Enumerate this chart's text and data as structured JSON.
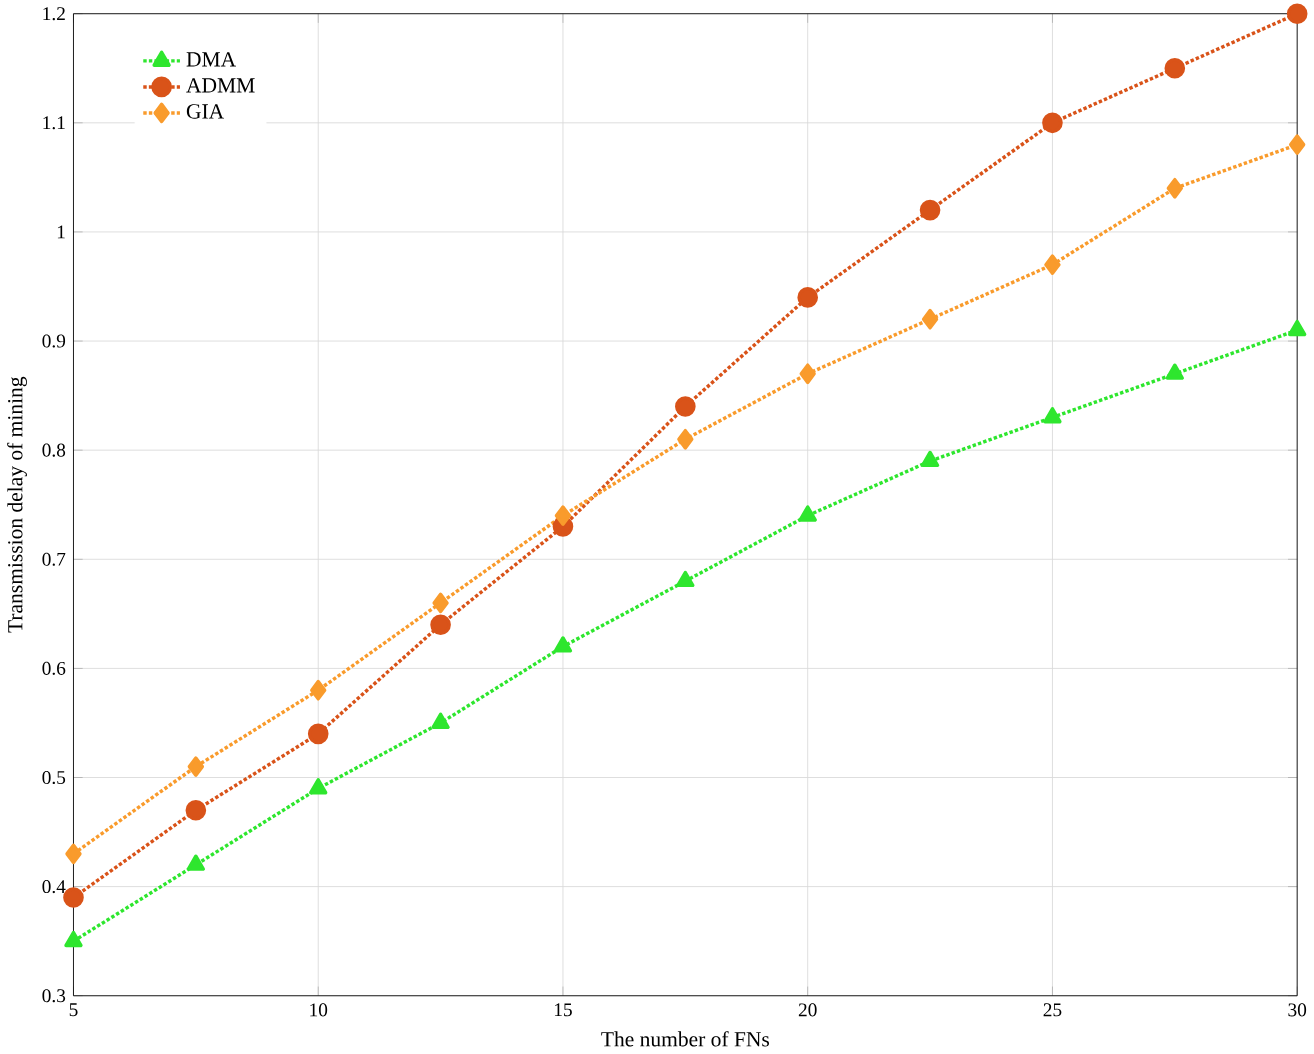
{
  "chart_data": {
    "type": "line",
    "xlabel": "The number of FNs",
    "ylabel": "Transmission delay of mining",
    "x": [
      5,
      7.5,
      10,
      12.5,
      15,
      17.5,
      20,
      22.5,
      25,
      27.5,
      30
    ],
    "series": [
      {
        "name": "DMA",
        "color": "#2ee62e",
        "marker": "triangle",
        "values": [
          0.35,
          0.42,
          0.49,
          0.55,
          0.62,
          0.68,
          0.74,
          0.79,
          0.83,
          0.87,
          0.91
        ]
      },
      {
        "name": "ADMM",
        "color": "#d95319",
        "marker": "circle",
        "values": [
          0.39,
          0.47,
          0.54,
          0.64,
          0.73,
          0.84,
          0.94,
          1.02,
          1.1,
          1.15,
          1.2
        ]
      },
      {
        "name": "GIA",
        "color": "#f99b2c",
        "marker": "diamond",
        "values": [
          0.43,
          0.51,
          0.58,
          0.66,
          0.74,
          0.81,
          0.87,
          0.92,
          0.97,
          1.04,
          1.08
        ]
      }
    ],
    "xlim": [
      5,
      30
    ],
    "ylim": [
      0.3,
      1.2
    ],
    "xticks": [
      5,
      10,
      15,
      20,
      25,
      30
    ],
    "yticks": [
      0.3,
      0.4,
      0.5,
      0.6,
      0.7,
      0.8,
      0.9,
      1,
      1.1,
      1.2
    ],
    "grid": true,
    "legend": "top left",
    "line_style": "dotted"
  }
}
